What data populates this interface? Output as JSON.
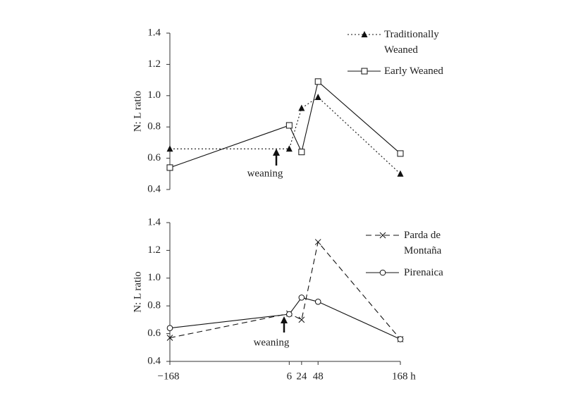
{
  "chart_data": [
    {
      "type": "line",
      "ylabel": "N: L ratio",
      "annotation": "weaning",
      "x": [
        -168,
        6,
        24,
        48,
        168
      ],
      "xlim": [
        -168,
        168
      ],
      "ylim": [
        0.4,
        1.4
      ],
      "yticks": [
        0.4,
        0.6,
        0.8,
        {
          "value": 1,
          "label": "1.0"
        },
        1.2,
        1.4
      ],
      "series": [
        {
          "name": "Traditionally Weaned",
          "color": "#111111",
          "marker": "triangle",
          "linestyle": "dotted",
          "values": [
            0.66,
            0.66,
            0.92,
            0.99,
            0.5
          ]
        },
        {
          "name": "Early Weaned",
          "color": "#111111",
          "marker": "square",
          "linestyle": "solid",
          "values": [
            0.54,
            0.81,
            0.64,
            1.09,
            0.63
          ]
        }
      ]
    },
    {
      "type": "line",
      "ylabel": "N: L ratio",
      "annotation": "weaning",
      "x": [
        -168,
        6,
        24,
        48,
        168
      ],
      "xlim": [
        -168,
        168
      ],
      "xticks": [
        {
          "value": -168,
          "label": "−168"
        },
        6,
        24,
        48,
        {
          "value": 168,
          "label": "168 h"
        }
      ],
      "ylim": [
        0.4,
        1.4
      ],
      "yticks": [
        0.4,
        0.6,
        0.8,
        {
          "value": 1,
          "label": "1.0"
        },
        1.2,
        1.4
      ],
      "series": [
        {
          "name": "Parda de Montaña",
          "color": "#111111",
          "marker": "x",
          "linestyle": "dashed",
          "values": [
            0.57,
            0.745,
            0.7,
            1.26,
            0.56
          ]
        },
        {
          "name": "Pirenaica",
          "color": "#111111",
          "marker": "circle",
          "linestyle": "solid",
          "values": [
            0.64,
            0.74,
            0.86,
            0.83,
            0.56
          ]
        }
      ]
    }
  ]
}
